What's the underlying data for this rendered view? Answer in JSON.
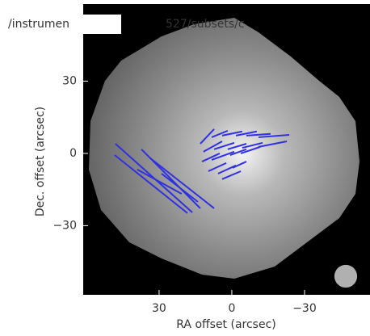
{
  "chart_data": {
    "type": "vector-map",
    "title_parts": [
      "/instrumen",
      "527/subsets/c"
    ],
    "xlabel": "RA offset (arcsec)",
    "ylabel": "Dec. offset (arcsec)",
    "xlim": [
      61.3,
      -57
    ],
    "ylim": [
      -58.7,
      62
    ],
    "xticks": [
      30,
      0,
      {
        "value": -30,
        "label": "−30"
      }
    ],
    "yticks": [
      30,
      0,
      {
        "value": -30,
        "label": "−30"
      }
    ],
    "color": "#3030e0",
    "beam": {
      "x": -47,
      "y": -51,
      "radius": 4.7,
      "color": "#b0b0b0"
    },
    "vectors": [
      {
        "x0": 48,
        "y0": 4,
        "x1": 16.3,
        "y1": -24.5
      },
      {
        "x0": 48.3,
        "y0": -0.7,
        "x1": 18.3,
        "y1": -24.8
      },
      {
        "x0": 37.3,
        "y0": 1.7,
        "x1": 13,
        "y1": -22.8
      },
      {
        "x0": 34,
        "y0": -1.7,
        "x1": 7.3,
        "y1": -22.8
      },
      {
        "x0": 29,
        "y0": -8.4,
        "x1": 14,
        "y1": -20.1
      },
      {
        "x0": 39,
        "y0": -6.7,
        "x1": 20.7,
        "y1": -16.8
      },
      {
        "x0": 13,
        "y0": 4,
        "x1": 7.3,
        "y1": 10.1
      },
      {
        "x0": 8.3,
        "y0": 6.7,
        "x1": 1.7,
        "y1": 9.4
      },
      {
        "x0": 4,
        "y0": 7.4,
        "x1": -4.3,
        "y1": 9.1
      },
      {
        "x0": -1.7,
        "y0": 7.4,
        "x1": -10.3,
        "y1": 9.1
      },
      {
        "x0": -6,
        "y0": 7.4,
        "x1": -16,
        "y1": 8.1
      },
      {
        "x0": -11,
        "y0": 6.7,
        "x1": -23.7,
        "y1": 7.7
      },
      {
        "x0": 11.7,
        "y0": 0.7,
        "x1": 4,
        "y1": 5
      },
      {
        "x0": 7.3,
        "y0": 1.7,
        "x1": -1,
        "y1": 4.4
      },
      {
        "x0": 1.7,
        "y0": 1.7,
        "x1": -6,
        "y1": 4
      },
      {
        "x0": -4.3,
        "y0": 2.3,
        "x1": -12.7,
        "y1": 4.4
      },
      {
        "x0": -11,
        "y0": 2.7,
        "x1": -22.7,
        "y1": 5
      },
      {
        "x0": 12.3,
        "y0": -3.4,
        "x1": 5,
        "y1": 0
      },
      {
        "x0": 8.3,
        "y0": -2.7,
        "x1": -1,
        "y1": 0.7
      },
      {
        "x0": 0.7,
        "y0": -0.7,
        "x1": -6,
        "y1": 1.7
      },
      {
        "x0": -3.7,
        "y0": 0,
        "x1": -11.7,
        "y1": 2.7
      },
      {
        "x0": 9.7,
        "y0": -7.4,
        "x1": 2.3,
        "y1": -4
      },
      {
        "x0": 5.7,
        "y0": -8.4,
        "x1": -1.7,
        "y1": -5
      },
      {
        "x0": -0.3,
        "y0": -6,
        "x1": -6,
        "y1": -3.4
      },
      {
        "x0": 4,
        "y0": -10.7,
        "x1": -3.7,
        "y1": -7.4
      }
    ]
  }
}
